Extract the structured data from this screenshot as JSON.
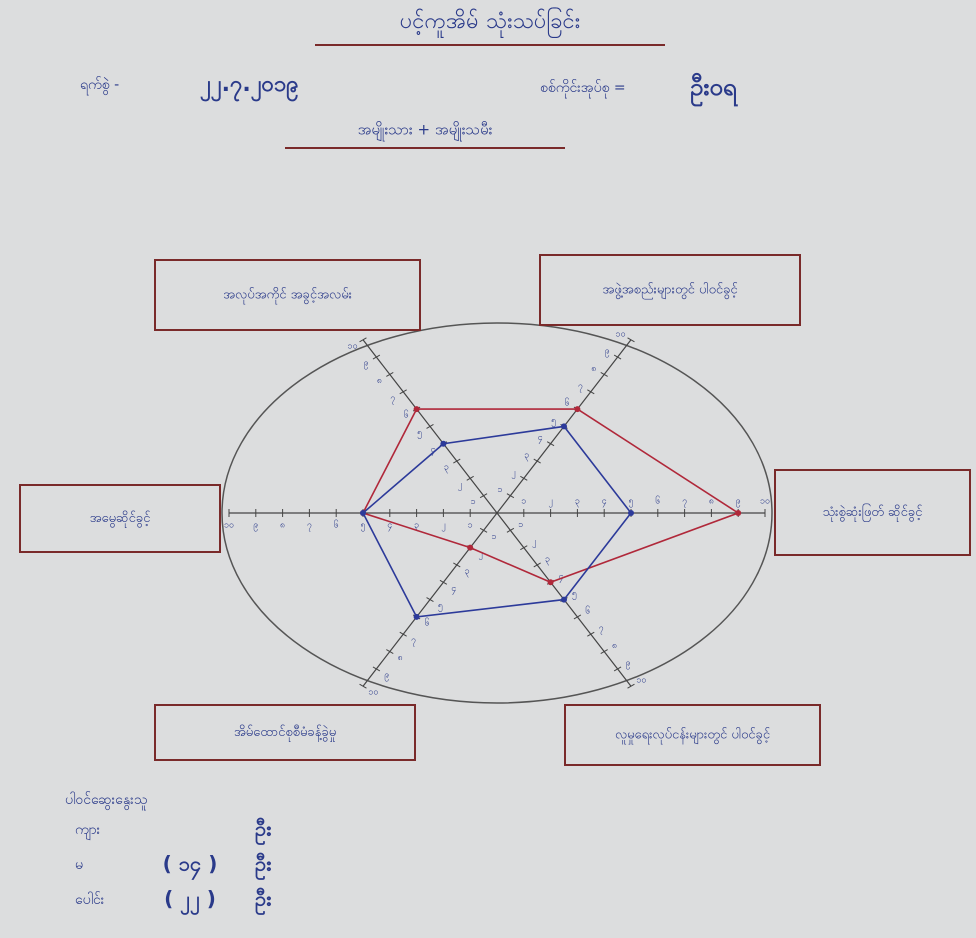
{
  "chart_data": {
    "type": "radar",
    "title": "ပင့်ကူအိမ် သုံးသပ်ခြင်း",
    "categories": [
      "သုံးစွဲဆုံးဖြတ် ဆိုင်ခွင့်",
      "အဖွဲ့အစည်းများတွင် ပါဝင်ခွင့်",
      "အလုပ်အကိုင် အခွင့်အလမ်း",
      "အမွေဆိုင်ခွင့်",
      "အိမ်ထောင်စုစီမံခန့်ခွဲမှု",
      "လူမှုရေးလုပ်ငန်းများတွင် ပါဝင်ခွင့်"
    ],
    "series": [
      {
        "color": "#b0283a",
        "values": [
          9,
          6,
          6,
          5,
          2,
          4
        ]
      },
      {
        "color": "#2c3a9a",
        "values": [
          5,
          5,
          4,
          5,
          6,
          5
        ]
      }
    ],
    "rlim": [
      0,
      10
    ],
    "rticks": [
      {
        "value": 1,
        "label": "၁"
      },
      {
        "value": 2,
        "label": "၂"
      },
      {
        "value": 3,
        "label": "၃"
      },
      {
        "value": 4,
        "label": "၄"
      },
      {
        "value": 5,
        "label": "၅"
      },
      {
        "value": 6,
        "label": "၆"
      },
      {
        "value": 7,
        "label": "၇"
      },
      {
        "value": 8,
        "label": "၈"
      },
      {
        "value": 9,
        "label": "၉"
      },
      {
        "value": 10,
        "label": "၁၀"
      }
    ]
  },
  "header": {
    "date_label": "ရက်စွဲ -",
    "date": "၂၂.၇.၂၀၁၉",
    "group_label": "စစ်ကိုင်းအုပ်စု =",
    "group": "ဦးဝရ",
    "subtitle": "အမျိုးသား + အမျိုးသမီး"
  },
  "participants": {
    "heading": "ပါဝင်ဆွေးနွေးသူ",
    "rows": [
      {
        "label": "ကျား",
        "unit": "ဦး"
      },
      {
        "label": "မ",
        "count": "( ၁၄ )",
        "unit": "ဦး"
      },
      {
        "label": "ပေါင်း",
        "count": "( ၂၂ )",
        "unit": "ဦး"
      }
    ]
  }
}
